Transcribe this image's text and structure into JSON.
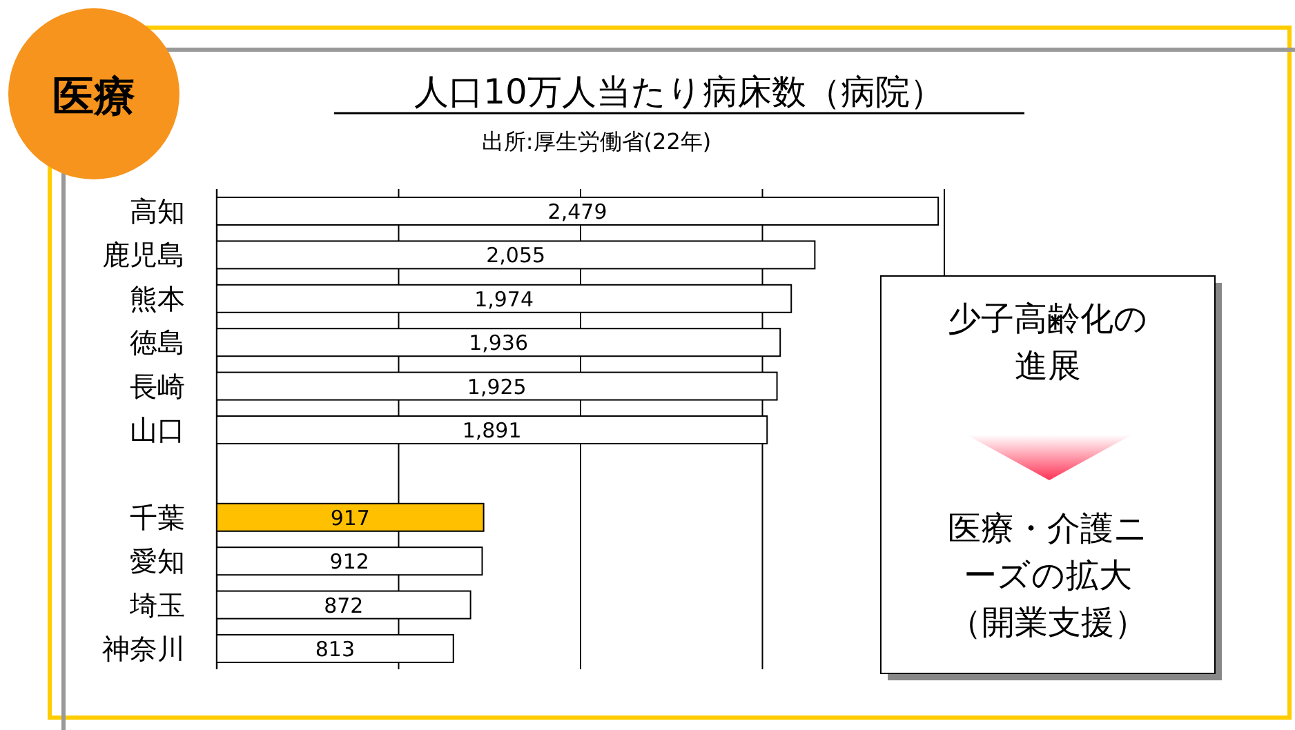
{
  "chart_data": {
    "type": "bar",
    "orientation": "horizontal",
    "title": "人口10万人当たり病床数（病院）",
    "subtitle": "出所:厚生労働省(22年)",
    "categories": [
      "高知",
      "鹿児島",
      "熊本",
      "徳島",
      "長崎",
      "山口",
      null,
      "千葉",
      "愛知",
      "埼玉",
      "神奈川"
    ],
    "values": [
      2479,
      2055,
      1974,
      1936,
      1925,
      1891,
      null,
      917,
      912,
      872,
      813
    ],
    "colors": [
      "#ffffff",
      "#ffffff",
      "#ffffff",
      "#ffffff",
      "#ffffff",
      "#ffffff",
      "#ffffff",
      "#ffc000",
      "#ffffff",
      "#ffffff",
      "#ffffff"
    ],
    "xlim": [
      0,
      2500
    ],
    "xticks": [
      {
        "value": 0,
        "label": null
      },
      {
        "value": 625,
        "label": null
      },
      {
        "value": 1250,
        "label": null
      },
      {
        "value": 1875,
        "label": null
      },
      {
        "value": 2500,
        "label": null
      }
    ],
    "value_labels": [
      "2,479",
      "2,055",
      "1,974",
      "1,936",
      "1,925",
      "1,891",
      null,
      "917",
      "912",
      "872",
      "813"
    ],
    "grid": "x",
    "tick_labels": "y",
    "annotations": [
      "医療",
      "少子高齢化の進展",
      "医療・介護ニーズの拡大（開業支援）"
    ]
  }
}
